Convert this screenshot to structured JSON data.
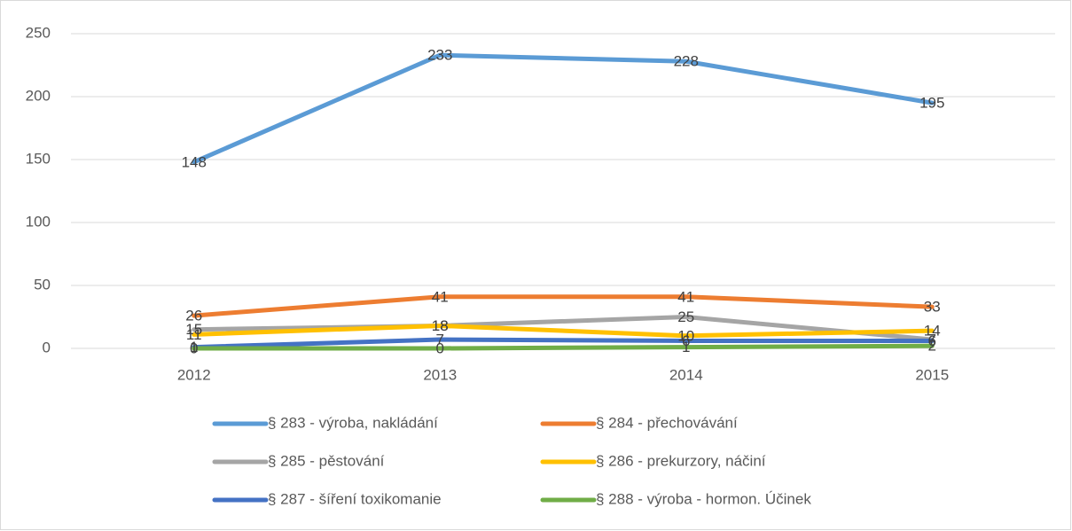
{
  "chart_data": {
    "type": "line",
    "categories": [
      "2012",
      "2013",
      "2014",
      "2015"
    ],
    "series": [
      {
        "name": "§ 283 - výroba, nakládání",
        "color": "#5b9bd5",
        "values": [
          148,
          233,
          228,
          195
        ]
      },
      {
        "name": "§ 284 - přechovávání",
        "color": "#ed7d31",
        "values": [
          26,
          41,
          41,
          33
        ]
      },
      {
        "name": "§ 285 - pěstování",
        "color": "#a5a5a5",
        "values": [
          15,
          18,
          25,
          7
        ]
      },
      {
        "name": "§ 286 - prekurzory, náčiní",
        "color": "#ffc000",
        "values": [
          11,
          18,
          10,
          14
        ]
      },
      {
        "name": "§ 287 - šíření toxikomanie",
        "color": "#4472c4",
        "values": [
          1,
          7,
          6,
          6
        ]
      },
      {
        "name": "§ 288 - výroba - hormon. Účinek",
        "color": "#70ad47",
        "values": [
          0,
          0,
          1,
          2
        ]
      }
    ],
    "ylim": [
      0,
      250
    ],
    "yticks": [
      0,
      50,
      100,
      150,
      200,
      250
    ],
    "grid": true
  }
}
